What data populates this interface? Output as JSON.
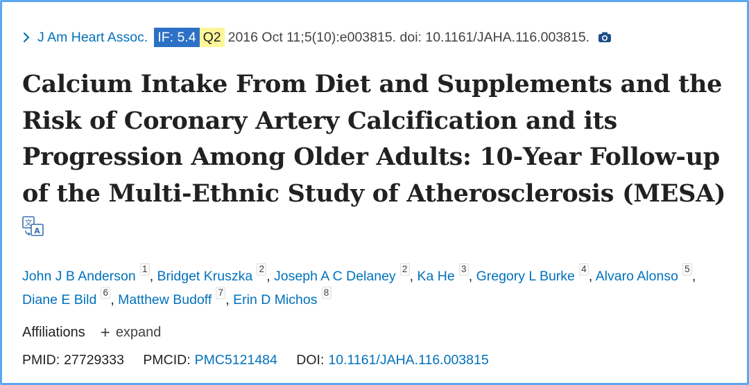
{
  "citation": {
    "journal": "J Am Heart Assoc.",
    "impact_factor": "IF: 5.4",
    "quartile": "Q2",
    "details": "2016 Oct 11;5(10):e003815. doi: 10.1161/JAHA.116.003815."
  },
  "title": "Calcium Intake From Diet and Supplements and the Risk of Coronary Artery Calcification and its Progression Among Older Adults: 10‑Year Follow‑up of the Multi‑Ethnic Study of Atherosclerosis (MESA)",
  "authors": [
    {
      "name": "John J B Anderson",
      "aff": "1"
    },
    {
      "name": "Bridget Kruszka",
      "aff": "2"
    },
    {
      "name": "Joseph A C Delaney",
      "aff": "2"
    },
    {
      "name": "Ka He",
      "aff": "3"
    },
    {
      "name": "Gregory L Burke",
      "aff": "4"
    },
    {
      "name": "Alvaro Alonso",
      "aff": "5"
    },
    {
      "name": "Diane E Bild",
      "aff": "6"
    },
    {
      "name": "Matthew Budoff",
      "aff": "7"
    },
    {
      "name": "Erin D Michos",
      "aff": "8"
    }
  ],
  "separator": ",",
  "affiliations": {
    "label": "Affiliations",
    "toggle_icon": "+",
    "toggle_label": "expand"
  },
  "identifiers": {
    "pmid_label": "PMID:",
    "pmid": "27729333",
    "pmcid_label": "PMCID:",
    "pmcid": "PMC5121484",
    "doi_label": "DOI:",
    "doi": "10.1161/JAHA.116.003815"
  },
  "icons": {
    "journal_chevron": "chevron-right-icon",
    "camera": "camera-icon",
    "translate": "translate-icon"
  },
  "colors": {
    "link": "#0071bc",
    "if_badge_bg": "#2d71c6",
    "q_badge_bg": "#fff69a",
    "frame_border": "#5ba7f0"
  }
}
